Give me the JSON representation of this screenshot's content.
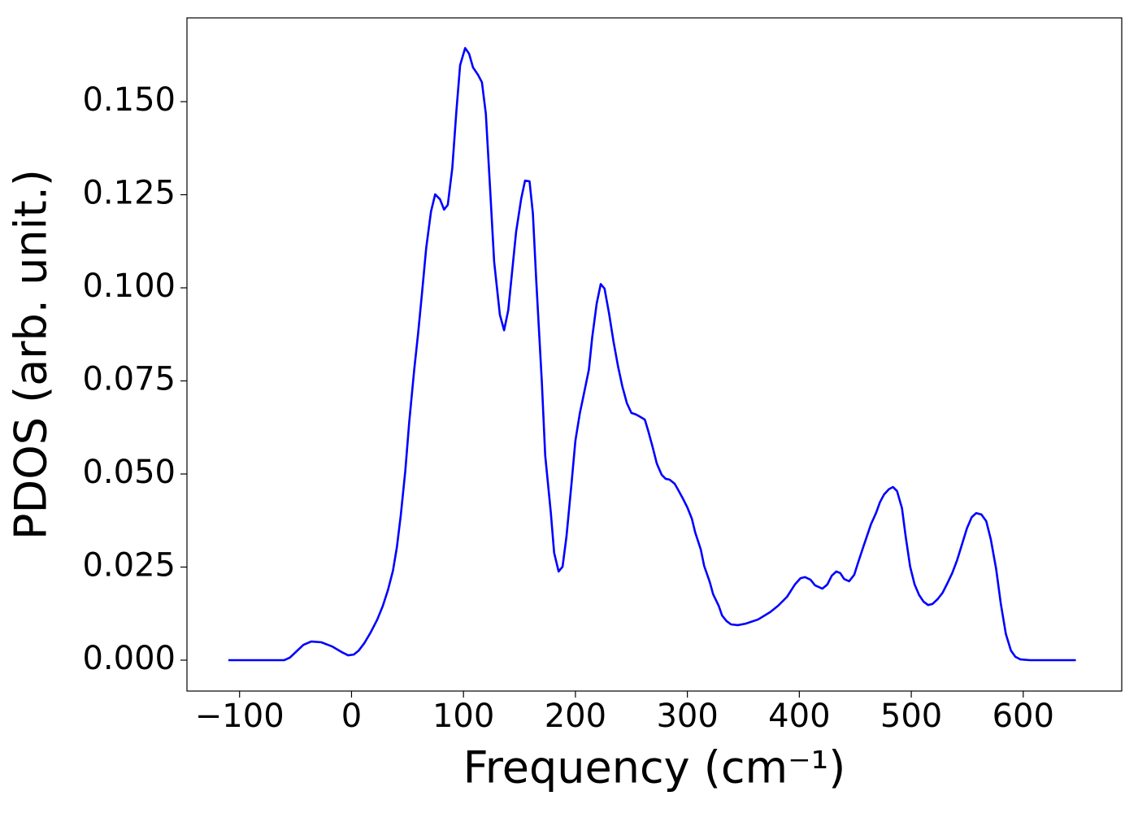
{
  "chart_data": {
    "type": "line",
    "xlabel": "Frequency (cm⁻¹)",
    "ylabel": "PDOS (arb. unit.)",
    "color": "#0000ff",
    "x": [
      -110,
      -60,
      -55,
      -49,
      -43,
      -36,
      -27,
      -17.5,
      -9,
      -3,
      2,
      6.5,
      11.5,
      17,
      23,
      28,
      32.5,
      37,
      40.5,
      44,
      48,
      51.5,
      56,
      59.5,
      63,
      66.7,
      71,
      74.7,
      79,
      82.7,
      86,
      90,
      93.6,
      97,
      101.5,
      105,
      108.5,
      113,
      116.5,
      120,
      123.7,
      127.4,
      132.5,
      136.3,
      140,
      147,
      151.6,
      155,
      159,
      162,
      165,
      170,
      173,
      178,
      181,
      185,
      188.5,
      192,
      196.5,
      200,
      204,
      207,
      212,
      215,
      219,
      222.6,
      226,
      230,
      234,
      238,
      242,
      246,
      250,
      254,
      257,
      262,
      265,
      269,
      272.7,
      277,
      280.6,
      284,
      288.6,
      292,
      296,
      300,
      304,
      307,
      312,
      315,
      320,
      323,
      328,
      331,
      335,
      339,
      345,
      352,
      363,
      374,
      381,
      389,
      396,
      401,
      405,
      410,
      414,
      420.6,
      425,
      429,
      433,
      436.5,
      440,
      444.5,
      449,
      452.5,
      457,
      460.5,
      464,
      468.5,
      472,
      475.7,
      480,
      483.7,
      487.3,
      491.7,
      495,
      499,
      503,
      507,
      511,
      515,
      519,
      523.6,
      528,
      532,
      536.6,
      541,
      545,
      549.7,
      554,
      558,
      562.7,
      567,
      571,
      575.8,
      580,
      584.5,
      589,
      593,
      597.5,
      606,
      647
    ],
    "values": [
      0,
      0,
      0.0007,
      0.0024,
      0.0041,
      0.005,
      0.0048,
      0.0037,
      0.0022,
      0.0013,
      0.0015,
      0.0026,
      0.0046,
      0.0074,
      0.0109,
      0.0146,
      0.0188,
      0.024,
      0.0303,
      0.0389,
      0.0507,
      0.0638,
      0.078,
      0.0878,
      0.0987,
      0.1107,
      0.1205,
      0.1251,
      0.1238,
      0.121,
      0.1223,
      0.1321,
      0.1472,
      0.1598,
      0.1644,
      0.1629,
      0.1592,
      0.1572,
      0.1552,
      0.1467,
      0.1271,
      0.107,
      0.0928,
      0.0886,
      0.094,
      0.115,
      0.124,
      0.1288,
      0.1286,
      0.12,
      0.102,
      0.0747,
      0.055,
      0.0397,
      0.0288,
      0.0238,
      0.0251,
      0.0332,
      0.0474,
      0.059,
      0.0664,
      0.0707,
      0.078,
      0.0867,
      0.0958,
      0.101,
      0.0998,
      0.0932,
      0.0856,
      0.079,
      0.0734,
      0.069,
      0.0664,
      0.066,
      0.0655,
      0.0646,
      0.0616,
      0.0572,
      0.0528,
      0.0498,
      0.0487,
      0.0485,
      0.0474,
      0.0456,
      0.0434,
      0.041,
      0.038,
      0.0343,
      0.0297,
      0.0253,
      0.021,
      0.0177,
      0.0146,
      0.012,
      0.0105,
      0.0096,
      0.0094,
      0.0098,
      0.0109,
      0.0129,
      0.0146,
      0.017,
      0.0203,
      0.022,
      0.0223,
      0.0216,
      0.0201,
      0.0192,
      0.0203,
      0.0227,
      0.0238,
      0.0234,
      0.0218,
      0.0212,
      0.0229,
      0.0262,
      0.0303,
      0.0334,
      0.0365,
      0.0395,
      0.0424,
      0.0445,
      0.0459,
      0.0465,
      0.0454,
      0.0408,
      0.0332,
      0.0251,
      0.0203,
      0.0175,
      0.0157,
      0.0148,
      0.0151,
      0.0164,
      0.0181,
      0.0205,
      0.0234,
      0.0269,
      0.0308,
      0.0354,
      0.0384,
      0.0395,
      0.0391,
      0.0373,
      0.0325,
      0.0245,
      0.0151,
      0.007,
      0.0026,
      0.0009,
      0.0002,
      0,
      0
    ],
    "xlim": [
      -147,
      688
    ],
    "ylim": [
      -0.0083,
      0.1725
    ],
    "xticks": [
      {
        "value": -100,
        "label": "−100"
      },
      0,
      100,
      200,
      300,
      400,
      500,
      600
    ],
    "yticks": [
      {
        "value": 0,
        "label": "0.000"
      },
      {
        "value": 0.025,
        "label": "0.025"
      },
      {
        "value": 0.05,
        "label": "0.050"
      },
      {
        "value": 0.075,
        "label": "0.075"
      },
      {
        "value": 0.1,
        "label": "0.100"
      },
      {
        "value": 0.125,
        "label": "0.125"
      },
      {
        "value": 0.15,
        "label": "0.150"
      }
    ]
  }
}
